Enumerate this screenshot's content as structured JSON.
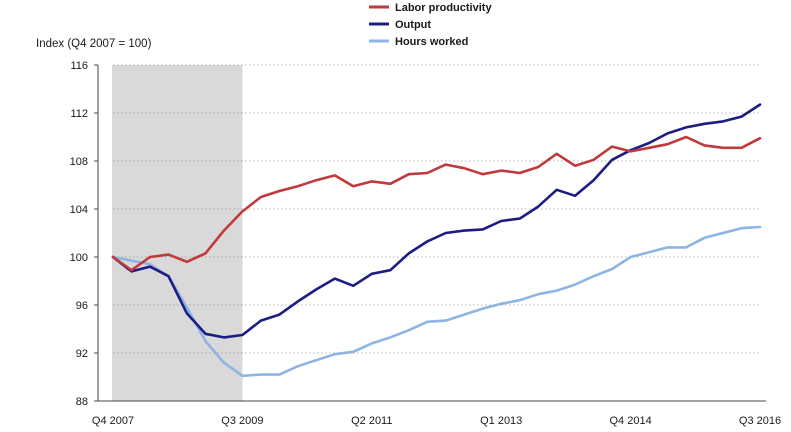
{
  "chart_data": {
    "type": "line",
    "ylabel": "Index (Q4 2007 = 100)",
    "ylim": [
      88,
      116
    ],
    "yticks": [
      88,
      92,
      96,
      100,
      104,
      108,
      112,
      116
    ],
    "x_tick_labels": [
      "Q4 2007",
      "Q3 2009",
      "Q2 2011",
      "Q1 2013",
      "Q4 2014",
      "Q3 2016"
    ],
    "x_tick_positions": [
      0,
      7,
      14,
      21,
      28,
      35
    ],
    "n_points": 36,
    "grid": "horizontal dotted",
    "legend": "top-center",
    "shaded_region": {
      "from": 0,
      "to": 7,
      "color": "#d9d9d9"
    },
    "series": [
      {
        "name": "Labor productivity",
        "color": "#c0393b",
        "values": [
          100.0,
          98.9,
          100.0,
          100.2,
          99.6,
          100.3,
          102.2,
          103.8,
          105.0,
          105.5,
          105.9,
          106.4,
          106.8,
          105.9,
          106.3,
          106.1,
          106.9,
          107.0,
          107.7,
          107.4,
          106.9,
          107.2,
          107.0,
          107.5,
          108.6,
          107.6,
          108.1,
          109.2,
          108.8,
          109.1,
          109.4,
          110.0,
          109.3,
          109.1,
          109.1,
          109.9
        ]
      },
      {
        "name": "Output",
        "color": "#1c1c84",
        "values": [
          100.0,
          98.8,
          99.2,
          98.4,
          95.3,
          93.6,
          93.3,
          93.5,
          94.7,
          95.2,
          96.3,
          97.3,
          98.2,
          97.6,
          98.6,
          98.9,
          100.3,
          101.3,
          102.0,
          102.2,
          102.3,
          103.0,
          103.2,
          104.2,
          105.6,
          105.1,
          106.4,
          108.1,
          108.9,
          109.5,
          110.3,
          110.8,
          111.1,
          111.3,
          111.7,
          112.7
        ]
      },
      {
        "name": "Hours worked",
        "color": "#8db4e2",
        "values": [
          100.0,
          99.7,
          99.4,
          98.4,
          95.8,
          93.0,
          91.2,
          90.1,
          90.2,
          90.2,
          90.9,
          91.4,
          91.9,
          92.1,
          92.8,
          93.3,
          93.9,
          94.6,
          94.7,
          95.2,
          95.7,
          96.1,
          96.4,
          96.9,
          97.2,
          97.7,
          98.4,
          99.0,
          100.0,
          100.4,
          100.8,
          100.8,
          101.6,
          102.0,
          102.4,
          102.5
        ]
      }
    ]
  }
}
